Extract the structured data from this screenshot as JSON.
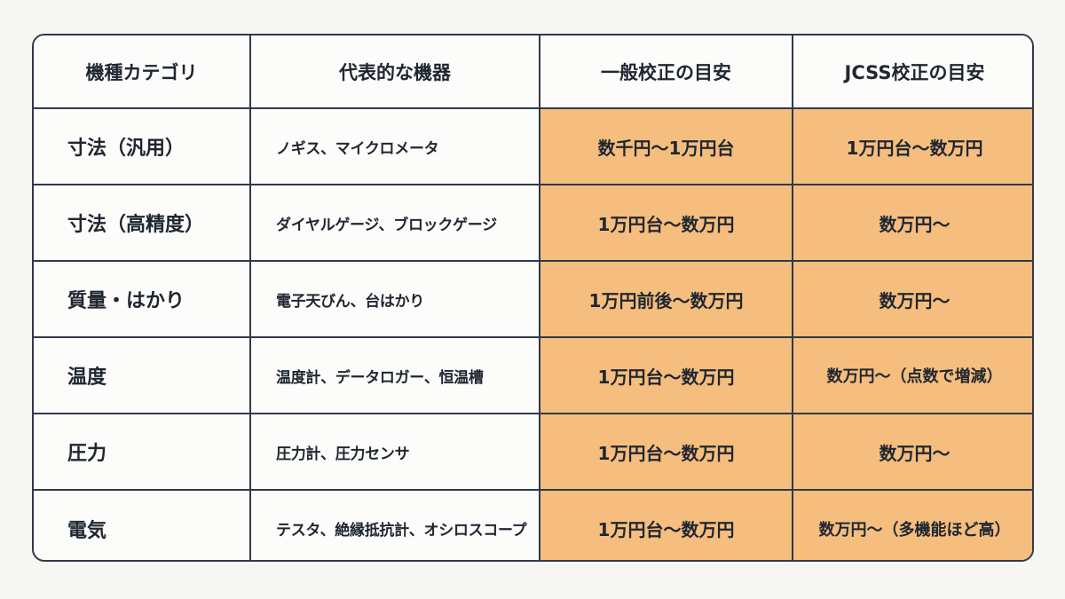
{
  "colors": {
    "price_cell_bg": "#f5bd7e",
    "border": "#2f3a4a",
    "background": "#f6f6f3"
  },
  "table": {
    "headers": [
      "機種カテゴリ",
      "代表的な機器",
      "一般校正の目安",
      "JCSS校正の目安"
    ],
    "rows": [
      {
        "category": "寸法（汎用）",
        "devices": "ノギス、マイクロメータ",
        "general": "数千円～1万円台",
        "jcss": "1万円台～数万円"
      },
      {
        "category": "寸法（高精度）",
        "devices": "ダイヤルゲージ、ブロックゲージ",
        "general": "1万円台～数万円",
        "jcss": "数万円～"
      },
      {
        "category": "質量・はかり",
        "devices": "電子天びん、台はかり",
        "general": "1万円前後～数万円",
        "jcss": "数万円～"
      },
      {
        "category": "温度",
        "devices": "温度計、データロガー、恒温槽",
        "general": "1万円台～数万円",
        "jcss": "数万円～（点数で増減）"
      },
      {
        "category": "圧力",
        "devices": "圧力計、圧力センサ",
        "general": "1万円台～数万円",
        "jcss": "数万円～"
      },
      {
        "category": "電気",
        "devices": "テスタ、絶縁抵抗計、オシロスコープ",
        "general": "1万円台～数万円",
        "jcss": "数万円～（多機能ほど高）"
      }
    ]
  }
}
